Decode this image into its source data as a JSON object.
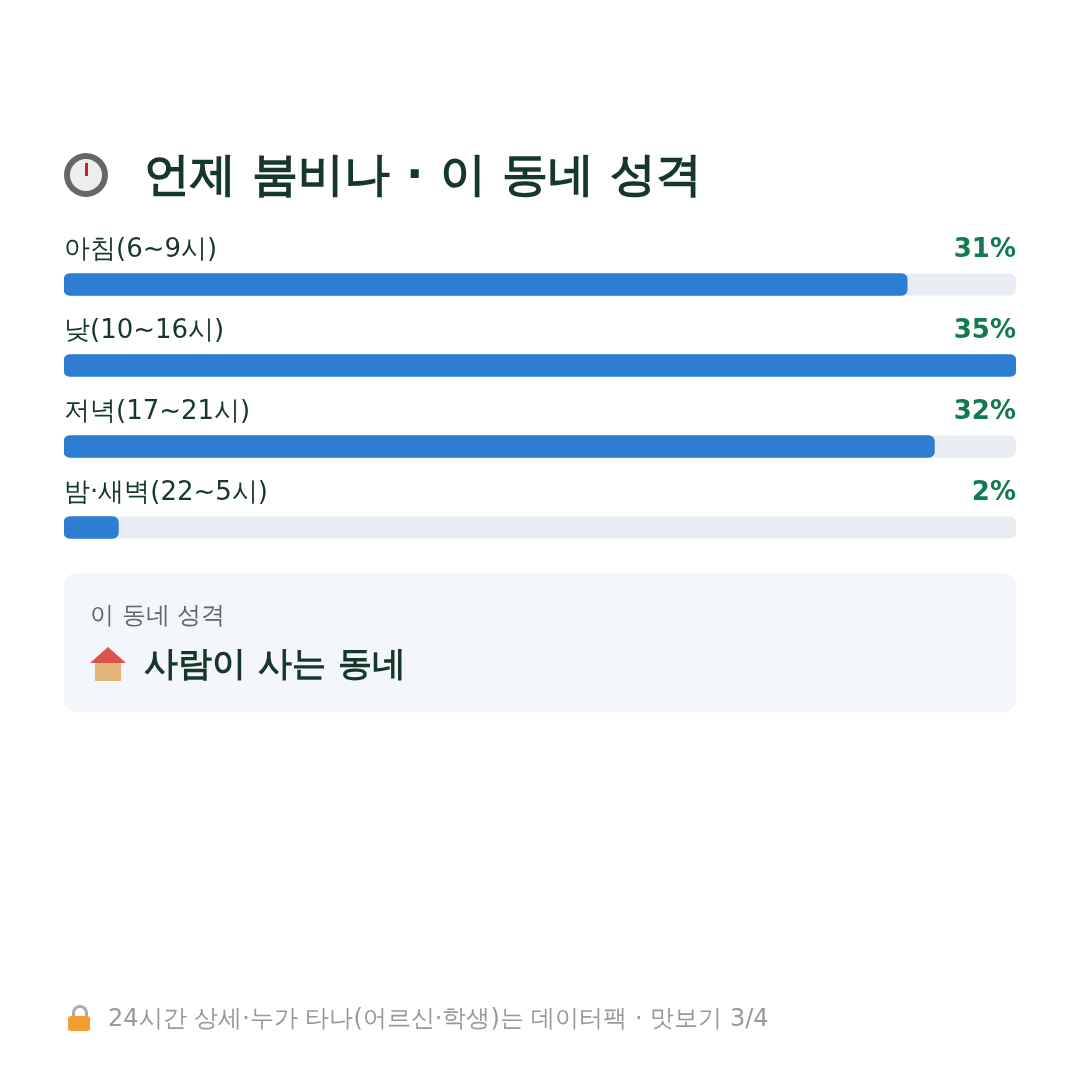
{
  "chart_data": {
    "type": "bar",
    "orientation": "horizontal",
    "title": "언제 붐비나 · 이 동네 성격",
    "categories": [
      "아침(6~9시)",
      "낮(10~16시)",
      "저녁(17~21시)",
      "밤·새벽(22~5시)"
    ],
    "values": [
      31,
      35,
      32,
      2
    ],
    "value_labels": [
      "31%",
      "35%",
      "32%",
      "2%"
    ],
    "color": "#2d7dd2",
    "annotations": [
      "이 동네 성격",
      "사람이 사는 동네",
      "24시간 상세·누가 타나(어르신·학생)는 데이터팩 · 맛보기 3/4"
    ]
  }
}
